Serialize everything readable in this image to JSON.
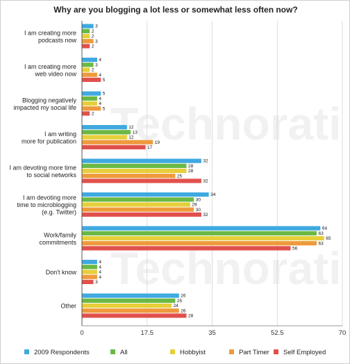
{
  "chart_data": {
    "type": "bar",
    "orientation": "horizontal",
    "title": "Why are you blogging a lot less or somewhat less often now?",
    "categories": [
      "I am creating more\npodcasts now",
      "I am creating more\nweb video now",
      "Blogging negatively\nimpacted my social life",
      "I am writing\nmore for publication",
      "I am devoting more time\nto social networks",
      "I am devoting more\ntime to microblogging\n(e.g. Twitter)",
      "Work/family\ncommitments",
      "Don't know",
      "Other"
    ],
    "series": [
      {
        "name": "2009 Respondents",
        "color": "#3fa9e0",
        "values": [
          3,
          4,
          5,
          12,
          32,
          34,
          64,
          4,
          26
        ]
      },
      {
        "name": "All",
        "color": "#6ab844",
        "values": [
          2,
          3,
          4,
          13,
          28,
          30,
          63,
          4,
          25
        ]
      },
      {
        "name": "Hobbyist",
        "color": "#e6cf3a",
        "values": [
          2,
          2,
          4,
          12,
          28,
          29,
          65,
          4,
          24
        ]
      },
      {
        "name": "Part Timer",
        "color": "#ee9a3c",
        "values": [
          3,
          4,
          5,
          19,
          25,
          30,
          63,
          4,
          26
        ]
      },
      {
        "name": "Self Employed",
        "color": "#e0514c",
        "values": [
          2,
          5,
          2,
          17,
          32,
          32,
          56,
          3,
          28
        ]
      }
    ],
    "xlim": [
      0,
      70
    ],
    "xticks": [
      "0",
      "17.5",
      "35",
      "52.5",
      "70"
    ],
    "grid": true,
    "legend_position": "bottom",
    "xlabel": "",
    "ylabel": ""
  },
  "watermark": "Technorati"
}
